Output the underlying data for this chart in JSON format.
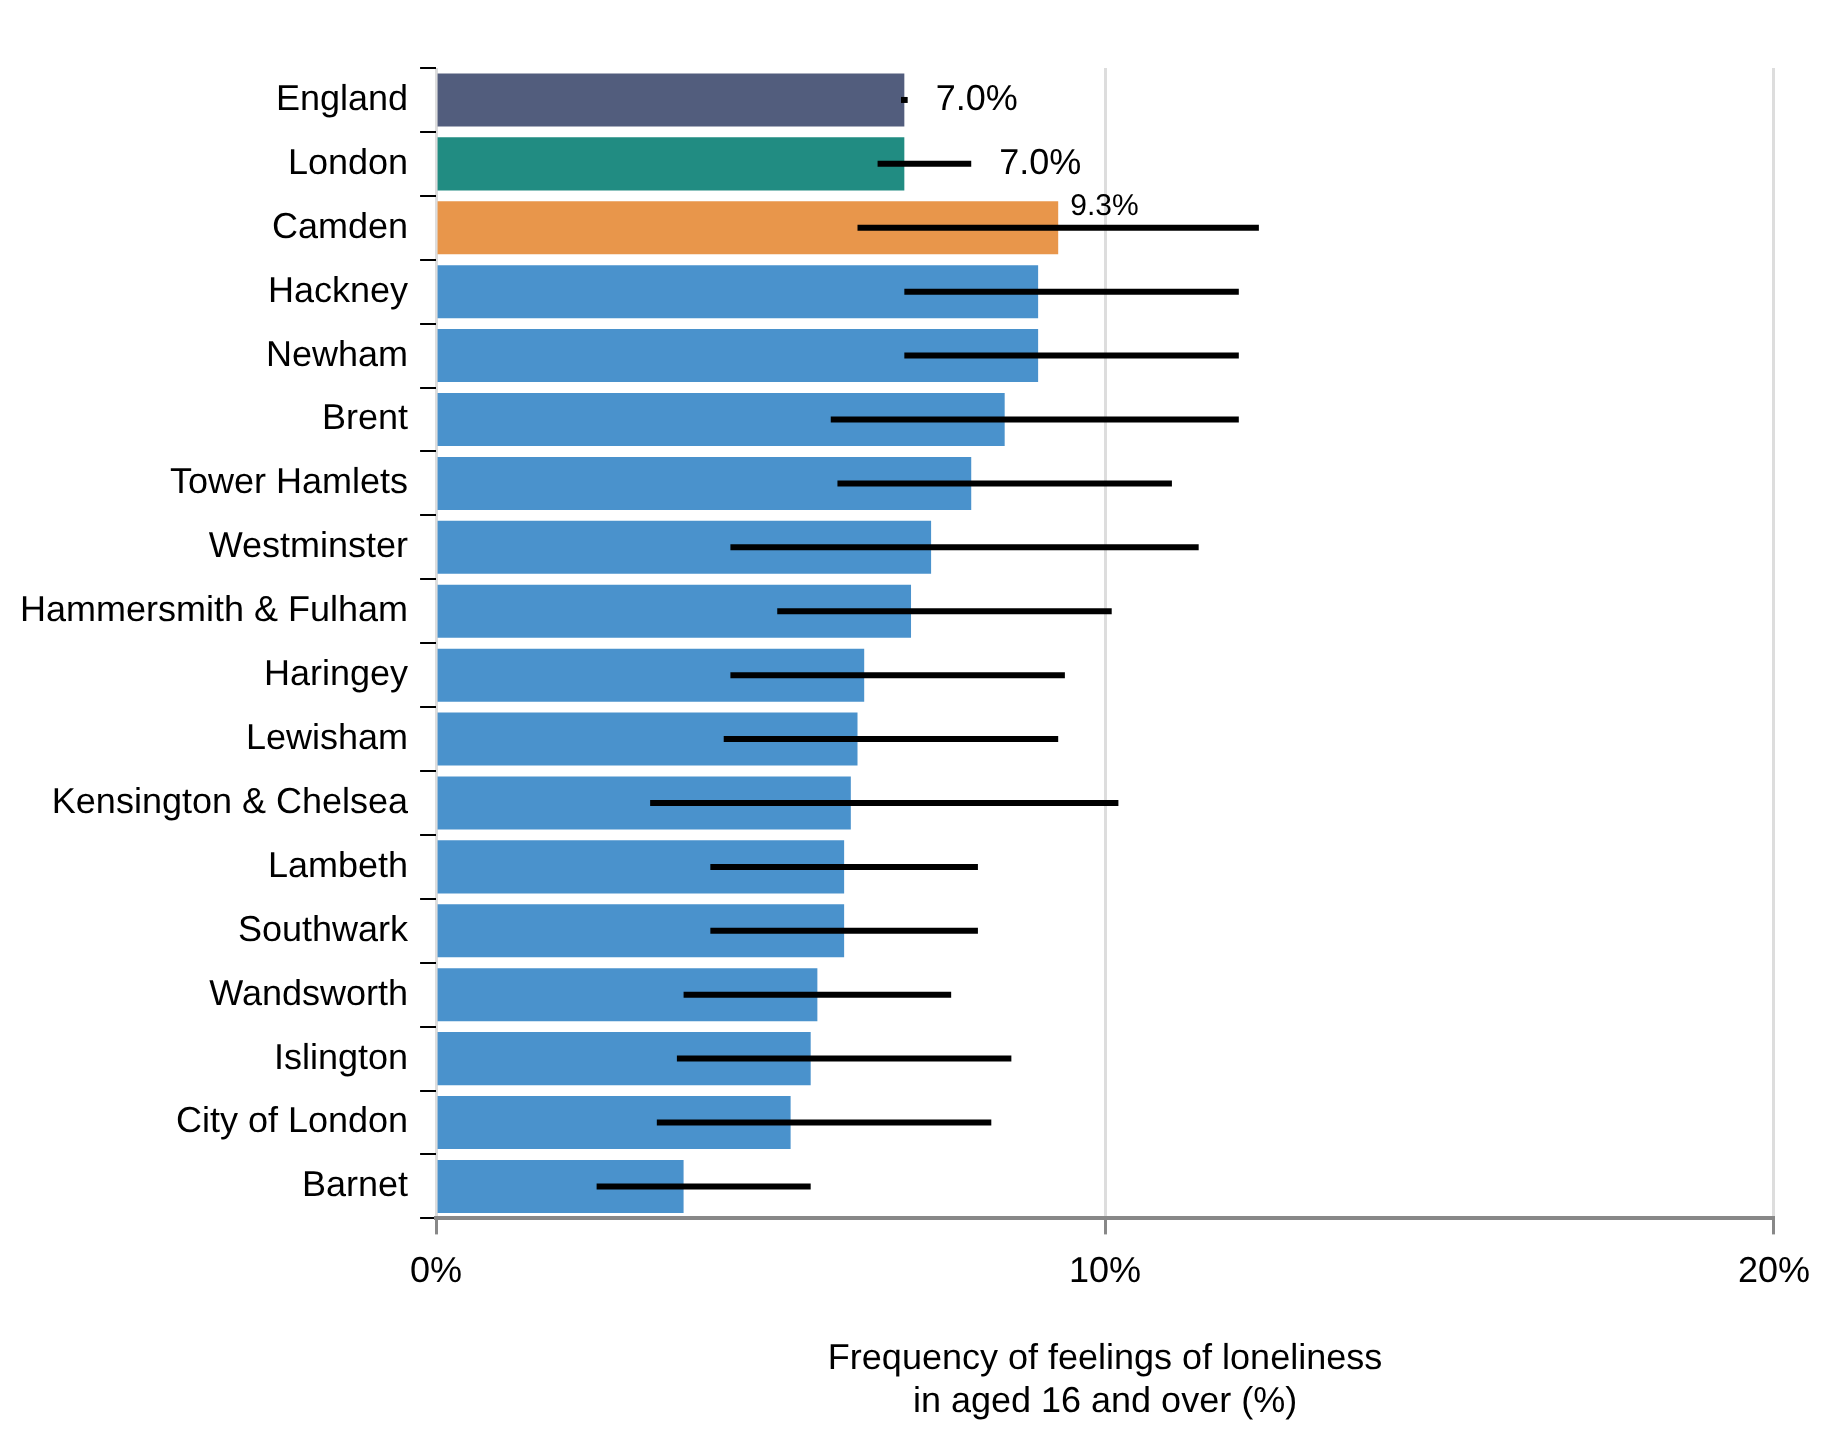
{
  "chart_data": {
    "type": "bar",
    "orientation": "horizontal",
    "categories": [
      "England",
      "London",
      "Camden",
      "Hackney",
      "Newham",
      "Brent",
      "Tower Hamlets",
      "Westminster",
      "Hammersmith & Fulham",
      "Haringey",
      "Lewisham",
      "Kensington & Chelsea",
      "Lambeth",
      "Southwark",
      "Wandsworth",
      "Islington",
      "City of London",
      "Barnet"
    ],
    "values": [
      7.0,
      7.0,
      9.3,
      9.0,
      9.0,
      8.5,
      8.0,
      7.4,
      7.1,
      6.4,
      6.3,
      6.2,
      6.1,
      6.1,
      5.7,
      5.6,
      5.3,
      3.7
    ],
    "colors": [
      "#525d7d",
      "#218c82",
      "#e8964b",
      "#4a92cc",
      "#4a92cc",
      "#4a92cc",
      "#4a92cc",
      "#4a92cc",
      "#4a92cc",
      "#4a92cc",
      "#4a92cc",
      "#4a92cc",
      "#4a92cc",
      "#4a92cc",
      "#4a92cc",
      "#4a92cc",
      "#4a92cc",
      "#4a92cc"
    ],
    "errors": [
      [
        6.95,
        7.05
      ],
      [
        6.6,
        8.0
      ],
      [
        6.3,
        12.3
      ],
      [
        7.0,
        12.0
      ],
      [
        7.0,
        12.0
      ],
      [
        5.9,
        12.0
      ],
      [
        6.0,
        11.0
      ],
      [
        4.4,
        11.4
      ],
      [
        5.1,
        10.1
      ],
      [
        4.4,
        9.4
      ],
      [
        4.3,
        9.3
      ],
      [
        3.2,
        10.2
      ],
      [
        4.1,
        8.1
      ],
      [
        4.1,
        8.1
      ],
      [
        3.7,
        7.7
      ],
      [
        3.6,
        8.6
      ],
      [
        3.3,
        8.3
      ],
      [
        2.4,
        5.6
      ]
    ],
    "value_labels": [
      "7.0%",
      "7.0%",
      "9.3%",
      null,
      null,
      null,
      null,
      null,
      null,
      null,
      null,
      null,
      null,
      null,
      null,
      null,
      null,
      null
    ],
    "xlabel": "Frequency of feelings of loneliness\nin aged 16 and over (%)",
    "xlim": [
      0,
      20
    ],
    "xticks": [
      {
        "value": 0,
        "label": "0%"
      },
      {
        "value": 10,
        "label": "10%"
      },
      {
        "value": 20,
        "label": "20%"
      }
    ],
    "grid": "x",
    "legend": false
  }
}
